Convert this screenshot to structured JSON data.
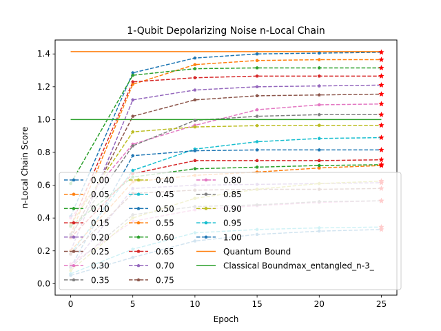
{
  "chart_data": {
    "type": "line",
    "title": "1-Qubit Depolarizing Noise n-Local Chain",
    "xlabel": "Epoch",
    "ylabel": "n-Local Chain Score",
    "x": [
      0,
      5,
      10,
      15,
      20,
      25
    ],
    "xlim": [
      -1.25,
      26.25
    ],
    "ylim": [
      -0.07,
      1.485
    ],
    "xticks": [
      "0",
      "5",
      "10",
      "15",
      "20",
      "25"
    ],
    "yticks": [
      "0.0",
      "0.2",
      "0.4",
      "0.6",
      "0.8",
      "1.0",
      "1.2",
      "1.4"
    ],
    "grid": false,
    "legend_position": "lower right",
    "series": [
      {
        "name": "0.00",
        "color": "#1f77b4",
        "values": [
          0.41,
          1.285,
          1.375,
          1.4,
          1.405,
          1.41
        ]
      },
      {
        "name": "0.05",
        "color": "#ff7f0e",
        "values": [
          0.3,
          1.215,
          1.335,
          1.36,
          1.365,
          1.365
        ]
      },
      {
        "name": "0.10",
        "color": "#2ca02c",
        "values": [
          0.61,
          1.27,
          1.31,
          1.315,
          1.315,
          1.315
        ]
      },
      {
        "name": "0.15",
        "color": "#d62728",
        "values": [
          0.35,
          1.23,
          1.255,
          1.265,
          1.265,
          1.265
        ]
      },
      {
        "name": "0.20",
        "color": "#9467bd",
        "values": [
          0.2,
          1.12,
          1.18,
          1.2,
          1.205,
          1.21
        ]
      },
      {
        "name": "0.25",
        "color": "#8c564b",
        "values": [
          0.28,
          1.02,
          1.12,
          1.145,
          1.15,
          1.155
        ]
      },
      {
        "name": "0.30",
        "color": "#e377c2",
        "values": [
          0.4,
          0.85,
          0.965,
          1.06,
          1.09,
          1.095
        ]
      },
      {
        "name": "0.35",
        "color": "#7f7f7f",
        "values": [
          0.3,
          0.84,
          0.995,
          1.02,
          1.03,
          1.03
        ]
      },
      {
        "name": "0.40",
        "color": "#bcbd22",
        "values": [
          0.36,
          0.925,
          0.955,
          0.963,
          0.965,
          0.965
        ]
      },
      {
        "name": "0.45",
        "color": "#17becf",
        "values": [
          0.18,
          0.69,
          0.82,
          0.865,
          0.885,
          0.89
        ]
      },
      {
        "name": "0.50",
        "color": "#1f77b4",
        "values": [
          0.1,
          0.78,
          0.81,
          0.815,
          0.815,
          0.815
        ]
      },
      {
        "name": "0.55",
        "color": "#ff7f0e",
        "values": [
          0.2,
          0.62,
          0.66,
          0.68,
          0.705,
          0.72
        ]
      },
      {
        "name": "0.60",
        "color": "#2ca02c",
        "values": [
          0.35,
          0.65,
          0.7,
          0.71,
          0.72,
          0.725
        ]
      },
      {
        "name": "0.65",
        "color": "#d62728",
        "values": [
          0.28,
          0.67,
          0.75,
          0.75,
          0.75,
          0.755
        ]
      },
      {
        "name": "0.70",
        "color": "#9467bd",
        "values": [
          0.1,
          0.58,
          0.6,
          0.605,
          0.61,
          0.615
        ]
      },
      {
        "name": "0.75",
        "color": "#8c564b",
        "values": [
          0.18,
          0.55,
          0.57,
          0.575,
          0.575,
          0.58
        ]
      },
      {
        "name": "0.80",
        "color": "#e377c2",
        "values": [
          0.12,
          0.38,
          0.45,
          0.475,
          0.495,
          0.505
        ]
      },
      {
        "name": "0.85",
        "color": "#7f7f7f",
        "values": [
          0.1,
          0.42,
          0.47,
          0.48,
          0.5,
          0.505
        ]
      },
      {
        "name": "0.90",
        "color": "#bcbd22",
        "values": [
          0.08,
          0.4,
          0.52,
          0.575,
          0.61,
          0.625
        ]
      },
      {
        "name": "0.95",
        "color": "#17becf",
        "values": [
          0.06,
          0.21,
          0.31,
          0.33,
          0.34,
          0.345
        ]
      },
      {
        "name": "1.00",
        "color": "#1f77b4",
        "values": [
          0.05,
          0.16,
          0.26,
          0.3,
          0.32,
          0.33
        ]
      }
    ],
    "reference_lines": [
      {
        "name": "Quantum Bound",
        "color": "#ff7f0e",
        "value": 1.414
      },
      {
        "name": "Classical Boundmax_entangled_n-3_",
        "color": "#2ca02c",
        "value": 1.0
      }
    ],
    "final_marker_color": "#ff0000"
  }
}
